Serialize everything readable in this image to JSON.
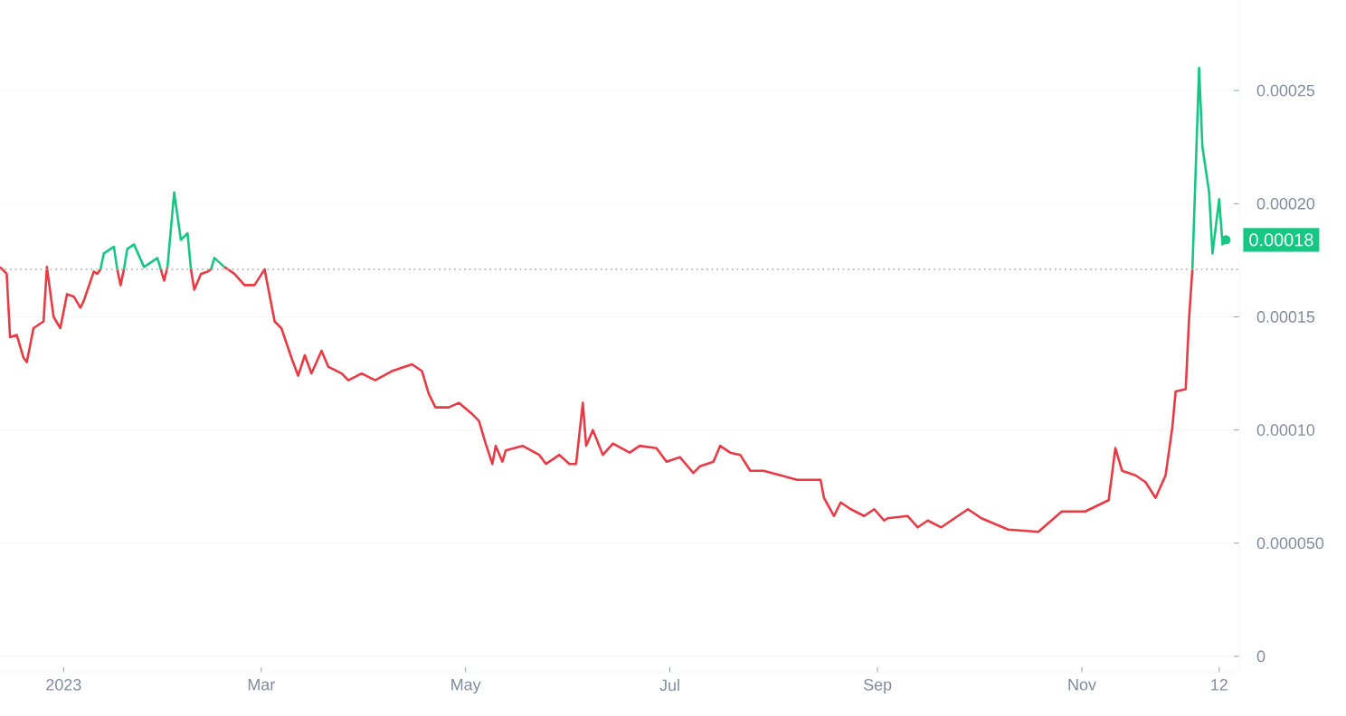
{
  "chart_data": {
    "type": "line",
    "x": [
      "2022-12-13",
      "2022-12-15",
      "2022-12-16",
      "2022-12-18",
      "2022-12-20",
      "2022-12-21",
      "2022-12-23",
      "2022-12-26",
      "2022-12-27",
      "2022-12-29",
      "2022-12-31",
      "2023-01-02",
      "2023-01-04",
      "2023-01-06",
      "2023-01-07",
      "2023-01-10",
      "2023-01-11",
      "2023-01-12",
      "2023-01-13",
      "2023-01-16",
      "2023-01-17",
      "2023-01-18",
      "2023-01-19",
      "2023-01-20",
      "2023-01-22",
      "2023-01-25",
      "2023-01-27",
      "2023-01-29",
      "2023-01-30",
      "2023-01-31",
      "2023-02-01",
      "2023-02-03",
      "2023-02-05",
      "2023-02-07",
      "2023-02-08",
      "2023-02-09",
      "2023-02-11",
      "2023-02-13",
      "2023-02-14",
      "2023-02-15",
      "2023-02-18",
      "2023-02-21",
      "2023-02-24",
      "2023-02-27",
      "2023-03-02",
      "2023-03-05",
      "2023-03-07",
      "2023-03-10",
      "2023-03-12",
      "2023-03-14",
      "2023-03-16",
      "2023-03-19",
      "2023-03-21",
      "2023-03-25",
      "2023-03-27",
      "2023-03-31",
      "2023-04-04",
      "2023-04-09",
      "2023-04-15",
      "2023-04-18",
      "2023-04-20",
      "2023-04-22",
      "2023-04-26",
      "2023-04-29",
      "2023-05-03",
      "2023-05-05",
      "2023-05-07",
      "2023-05-09",
      "2023-05-10",
      "2023-05-12",
      "2023-05-13",
      "2023-05-18",
      "2023-05-23",
      "2023-05-25",
      "2023-05-29",
      "2023-06-01",
      "2023-06-03",
      "2023-06-05",
      "2023-06-06",
      "2023-06-08",
      "2023-06-11",
      "2023-06-14",
      "2023-06-19",
      "2023-06-22",
      "2023-06-27",
      "2023-06-30",
      "2023-07-04",
      "2023-07-08",
      "2023-07-10",
      "2023-07-14",
      "2023-07-16",
      "2023-07-19",
      "2023-07-22",
      "2023-07-25",
      "2023-07-29",
      "2023-08-03",
      "2023-08-08",
      "2023-08-15",
      "2023-08-16",
      "2023-08-19",
      "2023-08-21",
      "2023-08-24",
      "2023-08-28",
      "2023-08-31",
      "2023-09-03",
      "2023-09-04",
      "2023-09-10",
      "2023-09-13",
      "2023-09-16",
      "2023-09-20",
      "2023-09-28",
      "2023-10-02",
      "2023-10-10",
      "2023-10-19",
      "2023-10-26",
      "2023-11-02",
      "2023-11-09",
      "2023-11-11",
      "2023-11-13",
      "2023-11-17",
      "2023-11-20",
      "2023-11-23",
      "2023-11-26",
      "2023-11-28",
      "2023-11-29",
      "2023-12-02",
      "2023-12-03",
      "2023-12-04",
      "2023-12-06",
      "2023-12-07",
      "2023-12-09",
      "2023-12-10",
      "2023-12-12",
      "2023-12-13",
      "2023-12-14"
    ],
    "series": [
      {
        "color": "#ea3943",
        "values": [
          0.000172,
          0.000169,
          0.000141,
          0.000142,
          0.000132,
          0.00013,
          0.000145,
          0.000148,
          0.000172,
          0.00015,
          0.000145,
          0.00016,
          0.000159,
          0.000154,
          0.000157,
          0.00017,
          0.000169,
          0.000171,
          null,
          null,
          0.000171,
          0.000164,
          0.000171,
          null,
          null,
          null,
          null,
          null,
          0.000171,
          0.000166,
          0.000172,
          null,
          null,
          null,
          0.000171,
          0.000162,
          0.000169,
          0.00017,
          0.000171,
          null,
          0.000172,
          0.000169,
          0.000164,
          0.000164,
          0.000171,
          0.000148,
          0.000145,
          0.000132,
          0.000124,
          0.000133,
          0.000125,
          0.000135,
          0.000128,
          0.000125,
          0.000122,
          0.000125,
          0.000122,
          0.000126,
          0.000129,
          0.000126,
          0.000116,
          0.00011,
          0.00011,
          0.000112,
          0.000107,
          0.000104,
          9.4e-05,
          8.5e-05,
          9.3e-05,
          8.6e-05,
          9.1e-05,
          9.3e-05,
          8.9e-05,
          8.5e-05,
          8.9e-05,
          8.5e-05,
          8.5e-05,
          0.000112,
          9.3e-05,
          0.0001,
          8.9e-05,
          9.4e-05,
          9e-05,
          9.3e-05,
          9.2e-05,
          8.6e-05,
          8.8e-05,
          8.1e-05,
          8.4e-05,
          8.6e-05,
          9.3e-05,
          9e-05,
          8.9e-05,
          8.2e-05,
          8.2e-05,
          8e-05,
          7.8e-05,
          7.8e-05,
          7e-05,
          6.2e-05,
          6.8e-05,
          6.5e-05,
          6.2e-05,
          6.5e-05,
          6e-05,
          6.1e-05,
          6.2e-05,
          5.7e-05,
          6e-05,
          5.7e-05,
          6.5e-05,
          6.1e-05,
          5.6e-05,
          5.5e-05,
          6.4e-05,
          6.4e-05,
          6.9e-05,
          9.2e-05,
          8.2e-05,
          8e-05,
          7.7e-05,
          7e-05,
          8e-05,
          0.000101,
          0.000117,
          0.000118,
          0.000149,
          0.000171,
          null,
          null,
          null,
          null,
          null,
          null,
          null
        ]
      },
      {
        "color": "#16c784",
        "values": [
          null,
          null,
          null,
          null,
          null,
          null,
          null,
          null,
          null,
          null,
          null,
          null,
          null,
          null,
          null,
          null,
          null,
          0.000171,
          0.000178,
          0.000181,
          0.000171,
          null,
          0.000171,
          0.00018,
          0.000182,
          0.000172,
          0.000174,
          0.000176,
          0.000171,
          null,
          0.000172,
          0.000205,
          0.000184,
          0.000187,
          0.000171,
          null,
          null,
          null,
          0.000171,
          0.000176,
          0.000172,
          null,
          null,
          null,
          null,
          null,
          null,
          null,
          null,
          null,
          null,
          null,
          null,
          null,
          null,
          null,
          null,
          null,
          null,
          null,
          null,
          null,
          null,
          null,
          null,
          null,
          null,
          null,
          null,
          null,
          null,
          null,
          null,
          null,
          null,
          null,
          null,
          null,
          null,
          null,
          null,
          null,
          null,
          null,
          null,
          null,
          null,
          null,
          null,
          null,
          null,
          null,
          null,
          null,
          null,
          null,
          null,
          null,
          null,
          null,
          null,
          null,
          null,
          null,
          null,
          null,
          null,
          null,
          null,
          null,
          null,
          null,
          null,
          null,
          null,
          null,
          null,
          null,
          null,
          null,
          null,
          null,
          null,
          null,
          null,
          null,
          null,
          0.000171,
          0.00026,
          0.000225,
          0.000205,
          0.000178,
          0.000202,
          0.000182,
          0.000184
        ]
      }
    ],
    "xlim": [
      "2022-12-13",
      "2023-12-18"
    ],
    "xticks": [
      {
        "value": "2023-01-01",
        "label": "2023"
      },
      {
        "value": "2023-03-01",
        "label": "Mar"
      },
      {
        "value": "2023-05-01",
        "label": "May"
      },
      {
        "value": "2023-07-01",
        "label": "Jul"
      },
      {
        "value": "2023-09-01",
        "label": "Sep"
      },
      {
        "value": "2023-11-01",
        "label": "Nov"
      },
      {
        "value": "2023-12-12",
        "label": "12"
      }
    ],
    "ylim": [
      -7.2e-06,
      0.00029
    ],
    "yticks": [
      0,
      {
        "value": 5e-05,
        "label": "0.000050"
      },
      {
        "value": 0.0001,
        "label": "0.00010"
      },
      {
        "value": 0.00015,
        "label": "0.00015"
      },
      {
        "value": 0.0002,
        "label": "0.00020"
      },
      {
        "value": 0.00025,
        "label": "0.00025"
      }
    ],
    "grid": "y",
    "ref_lines": [
      {
        "axis": "y",
        "value": 0.000171,
        "color": "#b0b0b0",
        "line_style": "dotted"
      }
    ],
    "annotations": [
      {
        "text": "0.00018",
        "x": "2023-12-14",
        "y": 0.000184
      }
    ]
  }
}
